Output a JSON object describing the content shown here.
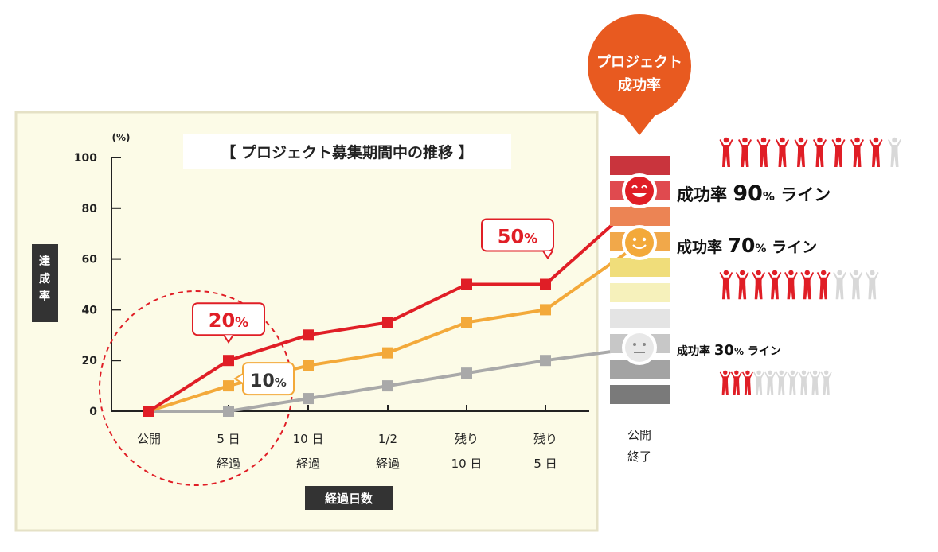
{
  "chart_data": {
    "type": "line",
    "title": "【 プロジェクト募集期間中の推移 】",
    "ylabel": "達成率",
    "yunit": "(%)",
    "xlabel": "経過日数",
    "ylim": [
      0,
      100
    ],
    "yticks": [
      "0",
      "20",
      "40",
      "60",
      "80",
      "100"
    ],
    "categories": [
      [
        "公開"
      ],
      [
        "5 日",
        "経過"
      ],
      [
        "10 日",
        "経過"
      ],
      [
        "1/2",
        "経過"
      ],
      [
        "残り",
        "10 日"
      ],
      [
        "残り",
        "5 日"
      ]
    ],
    "end_category": [
      "公開",
      "終了"
    ],
    "series": [
      {
        "key": "high",
        "color": "#e01e26",
        "values": [
          0,
          20,
          30,
          35,
          50,
          50
        ],
        "end": 83
      },
      {
        "key": "mid",
        "color": "#f3a93a",
        "values": [
          0,
          10,
          18,
          23,
          35,
          40
        ],
        "end": 66
      },
      {
        "key": "low",
        "color": "#a9a9a9",
        "values": [
          0,
          0,
          5,
          10,
          15,
          20
        ],
        "end": 25
      }
    ],
    "callouts": [
      {
        "series": "high",
        "index": 1,
        "text": "20",
        "unit": "%"
      },
      {
        "series": "mid",
        "index": 1,
        "text": "10",
        "unit": "%"
      },
      {
        "series": "high",
        "index": 5,
        "text": "50",
        "unit": "%"
      }
    ],
    "grid": false
  },
  "side": {
    "badge": [
      "プロジェクト",
      "成功率"
    ],
    "band_colors": [
      "#c9343d",
      "#e04a4f",
      "#ec8454",
      "#f1a84a",
      "#f0dd7a",
      "#f6f1bb",
      "#e4e4e4",
      "#c7c7c7",
      "#a3a3a3",
      "#7a7a7a"
    ],
    "lines": [
      {
        "key": "high",
        "prefix": "成功率 ",
        "number": "90",
        "unit": "%",
        "suffix": " ライン",
        "filled": 9,
        "total": 10
      },
      {
        "key": "mid",
        "prefix": "成功率 ",
        "number": "70",
        "unit": "%",
        "suffix": " ライン",
        "filled": 7,
        "total": 10
      },
      {
        "key": "low",
        "prefix": "成功率 ",
        "number": "30",
        "unit": "%",
        "suffix": " ライン",
        "filled": 3,
        "total": 10
      }
    ]
  },
  "colors": {
    "panel_bg": "#fcfbe7",
    "panel_border": "#e5e1c6",
    "axis": "#222222",
    "label_bg": "#333333",
    "badge": "#e85a20",
    "figure_filled": "#e01e26",
    "figure_empty": "#d8d8d8"
  }
}
